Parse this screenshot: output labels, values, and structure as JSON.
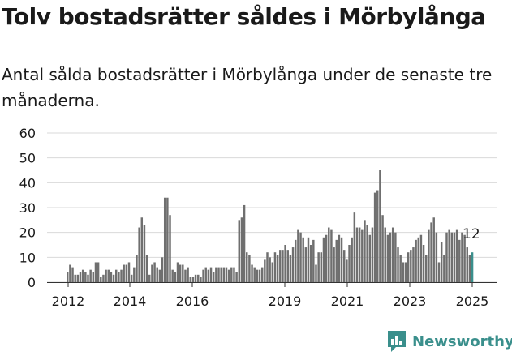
{
  "title": "Tolv bostadsrätter såldes i Mörbylånga",
  "subtitle": "Antal sålda bostadsrätter i Mörbylånga under de senaste tre månaderna.",
  "brand": {
    "name": "Newsworthy",
    "color": "#3a8f8c",
    "icon": "newsworthy-chart-icon"
  },
  "colors": {
    "bars": "#6f6f6f",
    "highlight": "#3a8f8c",
    "grid": "#d9d9d9"
  },
  "chart_data": {
    "type": "bar",
    "ylim": [
      0,
      60
    ],
    "yticks": [
      0,
      10,
      20,
      30,
      40,
      50,
      60
    ],
    "xticks": [
      "2012",
      "2014",
      "2016",
      "2019",
      "2021",
      "2023",
      "2025"
    ],
    "grid": true,
    "last_label": "12",
    "values": [
      4,
      7,
      6,
      3,
      3,
      4,
      5,
      4,
      3,
      5,
      4,
      8,
      8,
      2,
      3,
      5,
      5,
      4,
      3,
      5,
      4,
      5,
      7,
      7,
      8,
      3,
      6,
      11,
      22,
      26,
      23,
      11,
      3,
      7,
      8,
      6,
      5,
      10,
      34,
      34,
      27,
      5,
      4,
      8,
      7,
      7,
      5,
      6,
      2,
      2,
      3,
      3,
      2,
      5,
      6,
      5,
      6,
      4,
      6,
      6,
      6,
      6,
      6,
      5,
      6,
      6,
      4,
      25,
      26,
      31,
      12,
      11,
      7,
      6,
      5,
      5,
      6,
      9,
      12,
      10,
      8,
      12,
      11,
      13,
      13,
      15,
      13,
      11,
      14,
      17,
      21,
      20,
      18,
      14,
      18,
      15,
      17,
      7,
      12,
      12,
      18,
      19,
      22,
      21,
      14,
      17,
      19,
      18,
      13,
      9,
      15,
      18,
      28,
      22,
      22,
      21,
      25,
      23,
      19,
      22,
      36,
      37,
      45,
      27,
      22,
      19,
      20,
      22,
      20,
      14,
      11,
      8,
      8,
      12,
      13,
      14,
      17,
      18,
      19,
      15,
      11,
      21,
      24,
      26,
      20,
      8,
      16,
      11,
      20,
      21,
      20,
      20,
      21,
      17,
      20,
      19,
      14,
      11,
      12
    ]
  }
}
